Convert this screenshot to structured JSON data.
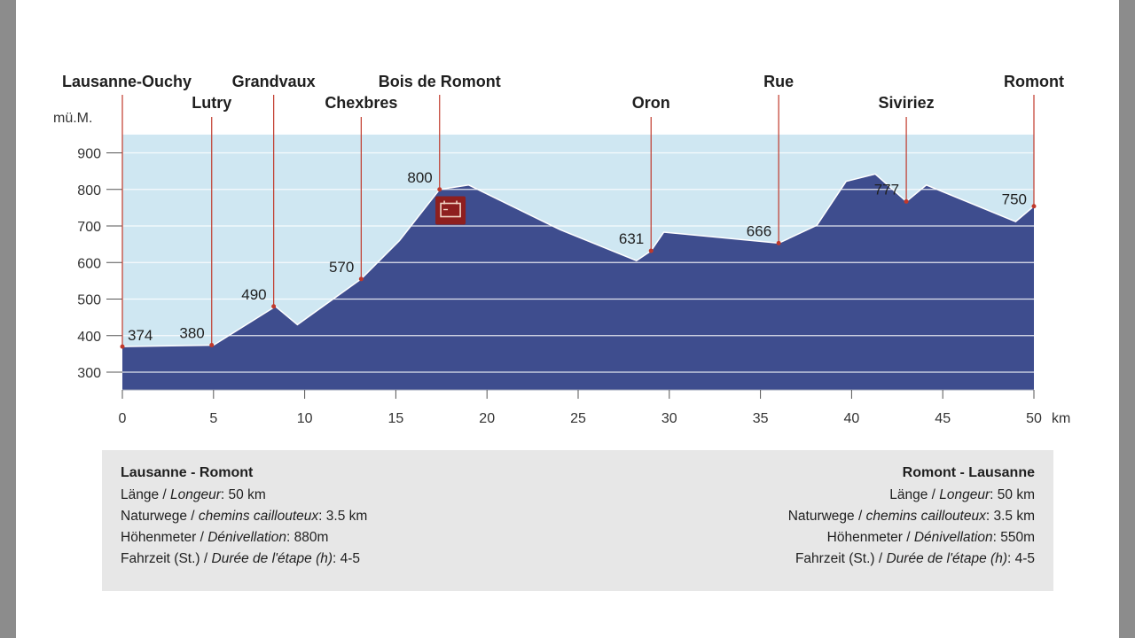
{
  "chart_data": {
    "type": "area",
    "ylabel": "mü.M.",
    "xunit": "km",
    "xlim": [
      0,
      50
    ],
    "ylim": [
      250,
      950
    ],
    "x_ticks": [
      0,
      5,
      10,
      15,
      20,
      25,
      30,
      35,
      40,
      45,
      50
    ],
    "y_ticks": [
      300,
      400,
      500,
      600,
      700,
      800,
      900
    ],
    "grid": "horizontal",
    "colors": {
      "sky": "#cfe7f2",
      "terrain": "#3e4d8e",
      "marker": "#c0392b",
      "icon": "#8e1f1f"
    },
    "profile": [
      {
        "x": 0,
        "y": 370
      },
      {
        "x": 5,
        "y": 374
      },
      {
        "x": 8.4,
        "y": 480
      },
      {
        "x": 9.6,
        "y": 430
      },
      {
        "x": 13.1,
        "y": 555
      },
      {
        "x": 15.2,
        "y": 660
      },
      {
        "x": 17.4,
        "y": 800
      },
      {
        "x": 19,
        "y": 812
      },
      {
        "x": 24,
        "y": 690
      },
      {
        "x": 28.2,
        "y": 605
      },
      {
        "x": 29,
        "y": 632
      },
      {
        "x": 29.7,
        "y": 683
      },
      {
        "x": 36,
        "y": 653
      },
      {
        "x": 38.1,
        "y": 702
      },
      {
        "x": 39.7,
        "y": 822
      },
      {
        "x": 41.3,
        "y": 842
      },
      {
        "x": 43,
        "y": 767
      },
      {
        "x": 44.1,
        "y": 812
      },
      {
        "x": 49,
        "y": 712
      },
      {
        "x": 50,
        "y": 754
      }
    ],
    "stations": [
      {
        "name": "Lausanne-Ouchy",
        "km": 0,
        "elev": 370,
        "label": "374",
        "name_row": 0
      },
      {
        "name": "Lutry",
        "km": 4.9,
        "elev": 374,
        "label": "380",
        "name_row": 1
      },
      {
        "name": "Grandvaux",
        "km": 8.3,
        "elev": 480,
        "label": "490",
        "name_row": 0
      },
      {
        "name": "Chexbres",
        "km": 13.1,
        "elev": 555,
        "label": "570",
        "name_row": 1
      },
      {
        "name": "Bois de Romont",
        "km": 17.4,
        "elev": 800,
        "label": "800",
        "name_row": 0
      },
      {
        "name": "Oron",
        "km": 29,
        "elev": 632,
        "label": "631",
        "name_row": 1
      },
      {
        "name": "Rue",
        "km": 36,
        "elev": 653,
        "label": "666",
        "name_row": 0
      },
      {
        "name": "Siviriez",
        "km": 43,
        "elev": 767,
        "label": "777",
        "name_row": 1
      },
      {
        "name": "Romont",
        "km": 50,
        "elev": 754,
        "label": "750",
        "name_row": 0
      }
    ],
    "icon": {
      "name": "restaurant-icon",
      "km": 18,
      "elev": 740
    }
  },
  "info": {
    "left": {
      "title": "Lausanne - Romont",
      "rows": [
        {
          "label": "Länge / ",
          "label_it": "Longeur",
          "value": ": 50 km"
        },
        {
          "label": "Naturwege / ",
          "label_it": "chemins caillouteux",
          "value": ": 3.5 km"
        },
        {
          "label": "Höhenmeter / ",
          "label_it": "Dénivellation",
          "value": ": 880m"
        },
        {
          "label": "Fahrzeit (St.) / ",
          "label_it": "Durée de l'étape (h)",
          "value": ": 4-5"
        }
      ]
    },
    "right": {
      "title": "Romont - Lausanne",
      "rows": [
        {
          "label": "Länge / ",
          "label_it": "Longeur",
          "value": ": 50 km"
        },
        {
          "label": "Naturwege / ",
          "label_it": "chemins caillouteux",
          "value": ": 3.5 km"
        },
        {
          "label": "Höhenmeter / ",
          "label_it": "Dénivellation",
          "value": ": 550m"
        },
        {
          "label": "Fahrzeit (St.) / ",
          "label_it": "Durée de l'étape (h)",
          "value": ": 4-5"
        }
      ]
    }
  }
}
